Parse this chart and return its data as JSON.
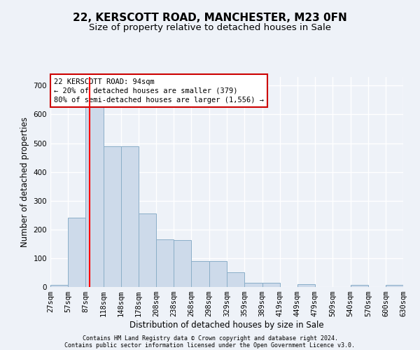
{
  "title": "22, KERSCOTT ROAD, MANCHESTER, M23 0FN",
  "subtitle": "Size of property relative to detached houses in Sale",
  "xlabel": "Distribution of detached houses by size in Sale",
  "ylabel": "Number of detached properties",
  "annotation_title": "22 KERSCOTT ROAD: 94sqm",
  "annotation_line1": "← 20% of detached houses are smaller (379)",
  "annotation_line2": "80% of semi-detached houses are larger (1,556) →",
  "footer1": "Contains HM Land Registry data © Crown copyright and database right 2024.",
  "footer2": "Contains public sector information licensed under the Open Government Licence v3.0.",
  "bar_edges": [
    27,
    57,
    87,
    118,
    148,
    178,
    208,
    238,
    268,
    298,
    329,
    359,
    389,
    419,
    449,
    479,
    509,
    540,
    570,
    600,
    630
  ],
  "bar_heights": [
    8,
    240,
    650,
    490,
    490,
    255,
    165,
    163,
    90,
    90,
    50,
    15,
    15,
    0,
    10,
    0,
    0,
    8,
    0,
    8
  ],
  "bar_color": "#cddaea",
  "bar_edge_color": "#8aaec8",
  "red_line_x": 94,
  "ylim": [
    0,
    730
  ],
  "yticks": [
    0,
    100,
    200,
    300,
    400,
    500,
    600,
    700
  ],
  "background_color": "#eef2f8",
  "plot_bg_color": "#eef2f8",
  "grid_color": "#ffffff",
  "annotation_box_facecolor": "#ffffff",
  "annotation_box_edgecolor": "#cc0000",
  "title_fontsize": 11,
  "subtitle_fontsize": 9.5,
  "axis_label_fontsize": 8.5,
  "tick_fontsize": 7.5,
  "annotation_fontsize": 7.5,
  "footer_fontsize": 6.0
}
